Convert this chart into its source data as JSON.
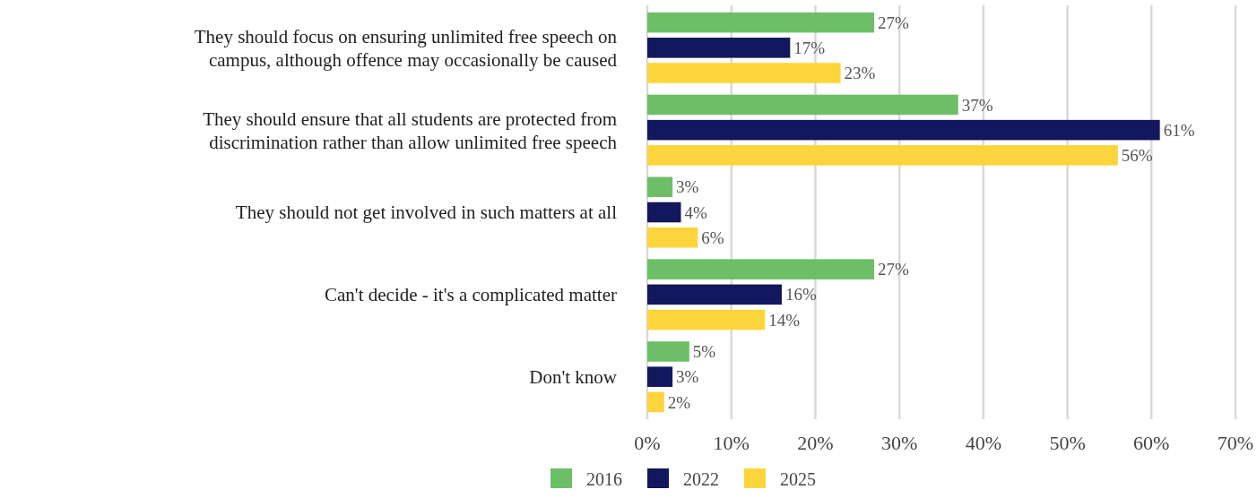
{
  "chart_data": {
    "type": "bar",
    "orientation": "horizontal",
    "categories": [
      "They should focus on ensuring unlimited free speech on campus, although offence may occasionally be caused",
      "They should ensure that all students are protected from discrimination rather than allow unlimited free speech",
      "They should not get involved in such matters at all",
      "Can't decide - it's a complicated matter",
      "Don't know"
    ],
    "series": [
      {
        "name": "2016",
        "color": "#6dbf67",
        "values": [
          27,
          37,
          3,
          27,
          5
        ],
        "value_labels": [
          "27%",
          "37%",
          "3%",
          "27%",
          "5%"
        ]
      },
      {
        "name": "2022",
        "color": "#13175e",
        "values": [
          17,
          61,
          4,
          16,
          3
        ],
        "value_labels": [
          "17%",
          "61%",
          "4%",
          "16%",
          "3%"
        ]
      },
      {
        "name": "2025",
        "color": "#fdd43b",
        "values": [
          23,
          56,
          6,
          14,
          2
        ],
        "value_labels": [
          "23%",
          "56%",
          "6%",
          "14%",
          "2%"
        ]
      }
    ],
    "xlim": [
      0,
      70
    ],
    "xticks": [
      {
        "value": 0,
        "label": "0%"
      },
      {
        "value": 10,
        "label": "10%"
      },
      {
        "value": 20,
        "label": "20%"
      },
      {
        "value": 30,
        "label": "30%"
      },
      {
        "value": 40,
        "label": "40%"
      },
      {
        "value": 50,
        "label": "50%"
      },
      {
        "value": 60,
        "label": "60%"
      },
      {
        "value": 70,
        "label": "70%"
      }
    ],
    "grid": "x",
    "legend": "bottom"
  }
}
